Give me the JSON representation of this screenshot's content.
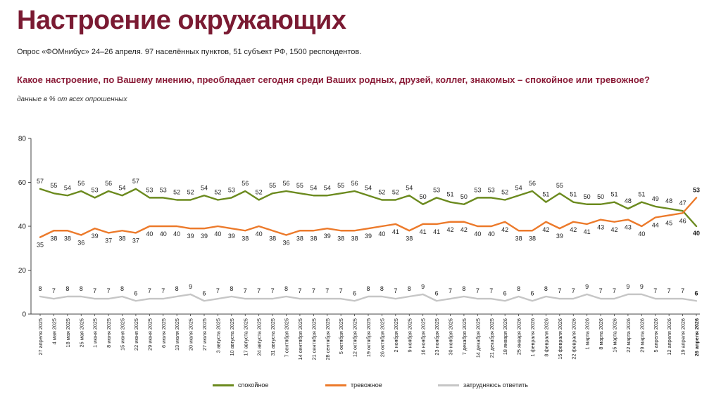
{
  "header": {
    "title": "Настроение окружающих",
    "subtitle": "Опрос «ФОМнибус» 24–26 апреля. 97 населённых пунктов, 51 субъект РФ, 1500 респондентов.",
    "question": "Какое настроение, по Вашему мнению, преобладает сегодня среди Ваших родных, друзей, коллег, знакомых – спокойное или тревожное?",
    "note": "данные в % от всех опрошенных"
  },
  "chart_data": {
    "type": "line",
    "categories": [
      "27 апреля 2025",
      "4 мая 2025",
      "18 мая 2025",
      "25 мая 2025",
      "1 июня 2025",
      "8 июня 2025",
      "15 июня 2025",
      "22 июня 2025",
      "29 июня 2025",
      "6 июля 2025",
      "13 июля 2025",
      "20 июля 2025",
      "27 июля 2025",
      "3 августа 2025",
      "10 августа 2025",
      "17 августа 2025",
      "24 августа 2025",
      "31 августа 2025",
      "7 сентября 2025",
      "14 сентября 2025",
      "21 сентября 2025",
      "28 сентября 2025",
      "5 октября 2025",
      "12 октября 2025",
      "19 октября 2025",
      "26 октября 2025",
      "2 ноября 2025",
      "9 ноября 2025",
      "16 ноября 2025",
      "23 ноября 2025",
      "30 ноября 2025",
      "7 декабря 2025",
      "14 декабря 2025",
      "21 декабря 2025",
      "18 января 2026",
      "25 января 2026",
      "1 февраля 2026",
      "8 февраля 2026",
      "15 февраля 2026",
      "22 февраля 2026",
      "1 марта 2026",
      "8 марта 2026",
      "15 марта 2026",
      "22 марта 2026",
      "29 марта 2026",
      "5 апреля 2026",
      "12 апреля 2026",
      "19 апреля 2026",
      "26 апреля 2026"
    ],
    "ylim": [
      0,
      80
    ],
    "yticks": [
      0,
      20,
      40,
      60,
      80
    ],
    "grid": false,
    "legend_position": "bottom",
    "series": [
      {
        "name": "спокойное",
        "color": "#6b8a1e",
        "values": [
          57,
          55,
          54,
          56,
          53,
          56,
          54,
          57,
          53,
          53,
          52,
          52,
          54,
          52,
          53,
          56,
          52,
          55,
          56,
          55,
          54,
          54,
          55,
          56,
          54,
          52,
          52,
          54,
          50,
          53,
          51,
          50,
          53,
          53,
          52,
          54,
          56,
          51,
          55,
          51,
          50,
          50,
          51,
          48,
          51,
          49,
          48,
          47,
          40
        ]
      },
      {
        "name": "тревожное",
        "color": "#ec7a2b",
        "values": [
          35,
          38,
          38,
          36,
          39,
          37,
          38,
          37,
          40,
          40,
          40,
          39,
          39,
          40,
          39,
          38,
          40,
          38,
          36,
          38,
          38,
          39,
          38,
          38,
          39,
          40,
          41,
          38,
          41,
          41,
          42,
          42,
          40,
          40,
          42,
          38,
          38,
          42,
          39,
          42,
          41,
          43,
          42,
          43,
          40,
          44,
          45,
          46,
          53
        ]
      },
      {
        "name": "затрудняюсь ответить",
        "color": "#c6c6c6",
        "values": [
          8,
          7,
          8,
          8,
          7,
          7,
          8,
          6,
          7,
          7,
          8,
          9,
          6,
          7,
          8,
          7,
          7,
          7,
          8,
          7,
          7,
          7,
          7,
          6,
          8,
          8,
          7,
          8,
          9,
          6,
          7,
          8,
          7,
          7,
          6,
          8,
          6,
          8,
          7,
          7,
          9,
          7,
          7,
          9,
          9,
          7,
          7,
          7,
          6
        ]
      }
    ]
  }
}
